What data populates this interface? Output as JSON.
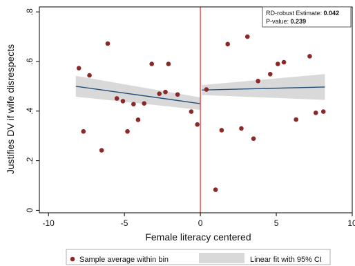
{
  "chart_data": {
    "type": "scatter",
    "xlabel": "Female literacy centered",
    "ylabel": "Justifies DV if wife disrespects",
    "xlim": [
      -10.6,
      10
    ],
    "ylim": [
      -0.01,
      0.82
    ],
    "xticks": [
      -10,
      -5,
      0,
      5,
      10
    ],
    "xtick_labels": [
      "-10",
      "-5",
      "0",
      "5",
      "10"
    ],
    "yticks": [
      0,
      0.2,
      0.4,
      0.6,
      0.8
    ],
    "ytick_labels": [
      "0",
      ".2",
      ".4",
      ".6",
      ".8"
    ],
    "grid": false,
    "cutoff": 0,
    "annotation": {
      "estimate_label": "RD-robust Estimate:",
      "estimate_value": "0.042",
      "pvalue_label": "P-value:",
      "pvalue_value": "0.239"
    },
    "legend": {
      "position": "bottom",
      "items": [
        "Sample average within bin",
        "Linear fit with 95% CI"
      ]
    },
    "colors": {
      "points": "#8b2929",
      "fit_line": "#234f7a",
      "ci_band": "#d9d9d9",
      "cutoff_line": "#e03030"
    },
    "series": [
      {
        "name": "Sample average within bin",
        "kind": "points",
        "x": [
          -8,
          -7.7,
          -7.3,
          -6.5,
          -6.1,
          -5.5,
          -5.1,
          -4.8,
          -4.4,
          -4.1,
          -3.7,
          -3.2,
          -2.7,
          -2.3,
          -2.1,
          -1.5,
          -0.6,
          -0.2,
          0.4,
          1.0,
          1.4,
          1.8,
          2.7,
          3.1,
          3.5,
          3.8,
          4.6,
          5.1,
          5.5,
          6.3,
          7.2,
          7.6,
          8.1
        ],
        "y": [
          0.573,
          0.318,
          0.544,
          0.242,
          0.672,
          0.451,
          0.44,
          0.318,
          0.428,
          0.365,
          0.431,
          0.59,
          0.47,
          0.477,
          0.59,
          0.467,
          0.398,
          0.346,
          0.487,
          0.083,
          0.323,
          0.67,
          0.33,
          0.7,
          0.289,
          0.521,
          0.549,
          0.59,
          0.597,
          0.366,
          0.621,
          0.393,
          0.398
        ]
      },
      {
        "name": "Linear fit with 95% CI",
        "kind": "fit",
        "segments": [
          {
            "x": [
              -8.2,
              0
            ],
            "y": [
              0.5,
              0.43
            ],
            "ci_lower": [
              0.458,
              0.405
            ],
            "ci_upper": [
              0.542,
              0.455
            ]
          },
          {
            "x": [
              0.1,
              8.2
            ],
            "y": [
              0.485,
              0.497
            ],
            "ci_lower": [
              0.465,
              0.445
            ],
            "ci_upper": [
              0.505,
              0.549
            ]
          }
        ]
      }
    ]
  }
}
